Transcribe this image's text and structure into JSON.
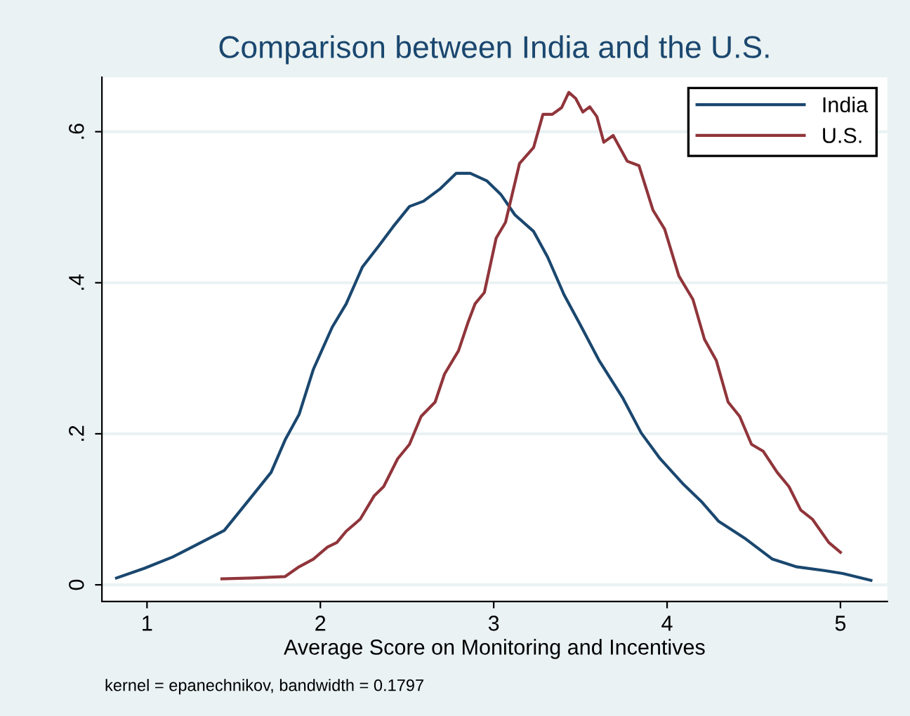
{
  "chart_data": {
    "type": "line",
    "title": "Comparison between India and the U.S.",
    "xlabel": "Average Score on Monitoring and Incentives",
    "annotations": [
      "kernel = epanechnikov, bandwidth = 0.1797"
    ],
    "xlim": [
      0.74,
      5.27
    ],
    "ylim": [
      -0.022,
      0.672
    ],
    "xticks": [
      1,
      2,
      3,
      4,
      5
    ],
    "yticks": [
      {
        "value": 0,
        "label": "0"
      },
      {
        "value": 0.2,
        "label": ".2"
      },
      {
        "value": 0.4,
        "label": ".4"
      },
      {
        "value": 0.6,
        "label": ".6"
      }
    ],
    "grid": "y",
    "legend": "top right",
    "marker": "none",
    "line_style": "solid",
    "series": [
      {
        "name": "India",
        "color": "#1a476f",
        "x": [
          0.824,
          0.986,
          1.149,
          1.311,
          1.446,
          1.608,
          1.716,
          1.797,
          1.878,
          1.959,
          2.068,
          2.149,
          2.243,
          2.338,
          2.419,
          2.514,
          2.595,
          2.689,
          2.784,
          2.865,
          2.96,
          3.041,
          3.122,
          3.23,
          3.311,
          3.406,
          3.5,
          3.608,
          3.743,
          3.851,
          3.96,
          4.095,
          4.203,
          4.298,
          4.446,
          4.608,
          4.744,
          4.906,
          5.014,
          5.176
        ],
        "values": [
          0.009,
          0.022,
          0.037,
          0.056,
          0.072,
          0.118,
          0.149,
          0.192,
          0.226,
          0.285,
          0.341,
          0.372,
          0.421,
          0.449,
          0.474,
          0.501,
          0.508,
          0.524,
          0.545,
          0.545,
          0.535,
          0.517,
          0.49,
          0.468,
          0.434,
          0.384,
          0.344,
          0.297,
          0.248,
          0.201,
          0.167,
          0.133,
          0.109,
          0.084,
          0.062,
          0.034,
          0.024,
          0.019,
          0.015,
          0.006
        ]
      },
      {
        "name": "U.S.",
        "color": "#90353b",
        "x": [
          1.432,
          1.608,
          1.797,
          1.878,
          1.959,
          2.041,
          2.095,
          2.149,
          2.23,
          2.311,
          2.365,
          2.446,
          2.514,
          2.581,
          2.662,
          2.716,
          2.797,
          2.851,
          2.892,
          2.946,
          3.014,
          3.068,
          3.149,
          3.23,
          3.284,
          3.338,
          3.392,
          3.433,
          3.473,
          3.514,
          3.554,
          3.595,
          3.635,
          3.689,
          3.77,
          3.838,
          3.919,
          3.986,
          4.068,
          4.149,
          4.216,
          4.284,
          4.352,
          4.419,
          4.487,
          4.554,
          4.635,
          4.703,
          4.771,
          4.838,
          4.933,
          5.0
        ],
        "values": [
          0.008,
          0.009,
          0.011,
          0.024,
          0.034,
          0.05,
          0.056,
          0.071,
          0.087,
          0.118,
          0.13,
          0.167,
          0.186,
          0.223,
          0.242,
          0.279,
          0.31,
          0.347,
          0.372,
          0.387,
          0.459,
          0.48,
          0.558,
          0.579,
          0.623,
          0.623,
          0.632,
          0.652,
          0.644,
          0.626,
          0.633,
          0.62,
          0.586,
          0.595,
          0.561,
          0.555,
          0.496,
          0.471,
          0.409,
          0.378,
          0.325,
          0.297,
          0.242,
          0.223,
          0.186,
          0.177,
          0.149,
          0.13,
          0.099,
          0.087,
          0.056,
          0.043
        ]
      }
    ]
  }
}
